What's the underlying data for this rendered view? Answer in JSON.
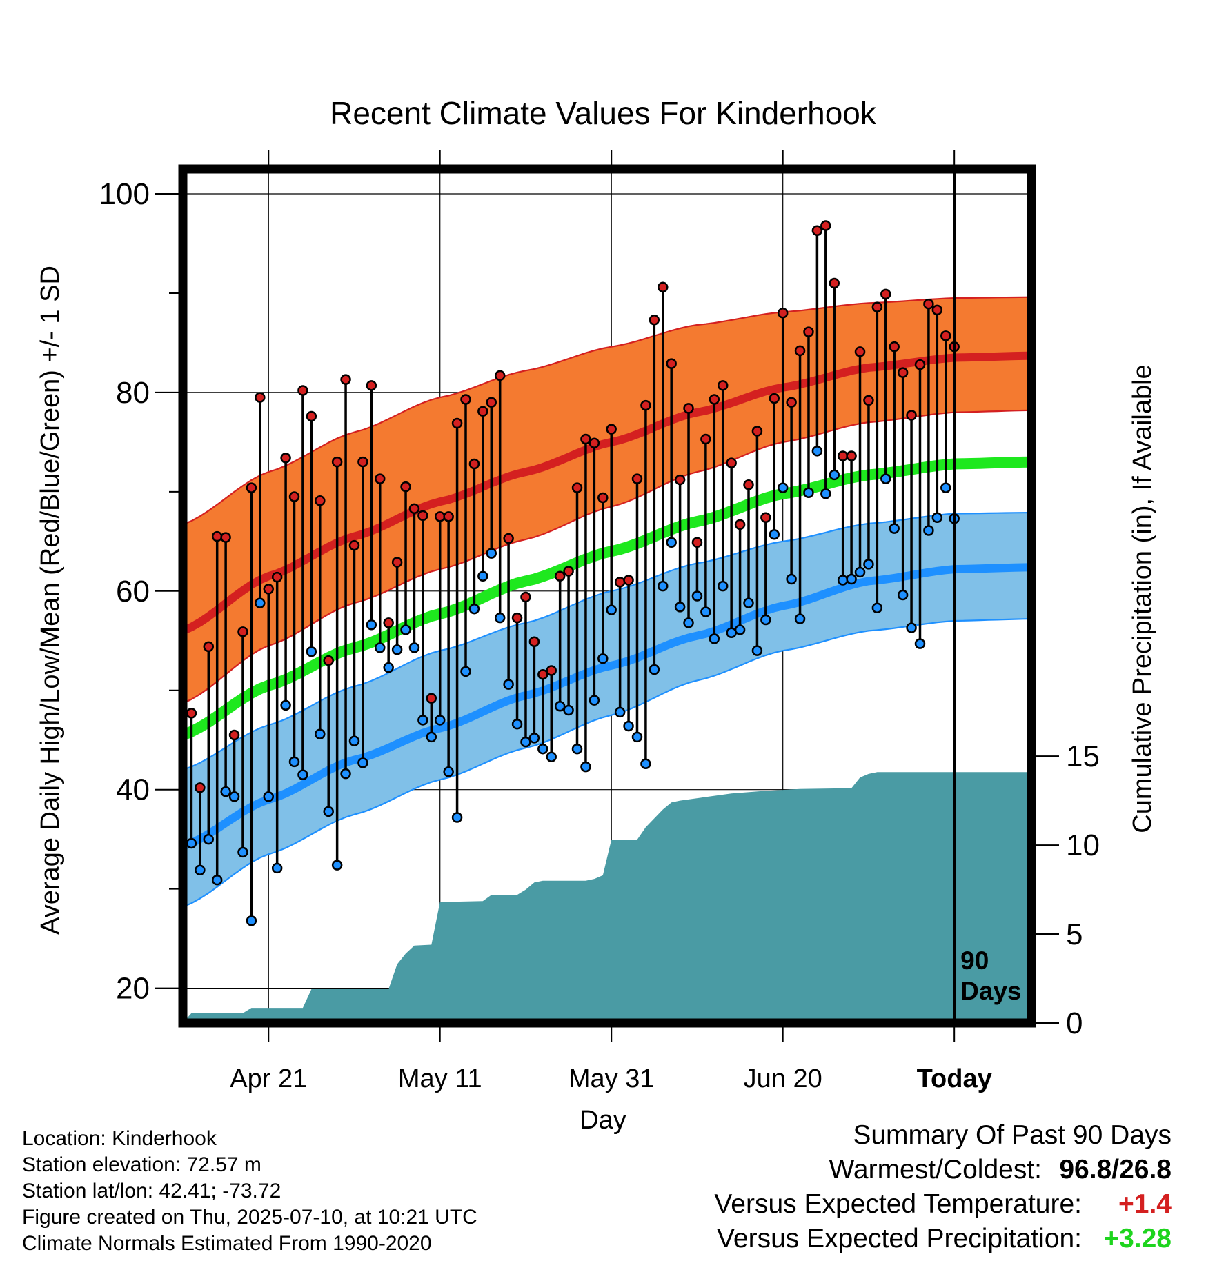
{
  "chart_data": {
    "type": "line",
    "title": "Recent Climate Values For Kinderhook",
    "xlabel": "Day",
    "ylabel": "Average Daily High/Low/Mean (Red/Blue/Green) +/- 1 SD",
    "y2label": "Cumulative Precipitation (in), If Available",
    "x_range": [
      "2025-04-11",
      "2025-07-19"
    ],
    "ylim": [
      16.5,
      102.5
    ],
    "y_ticks": [
      20,
      40,
      60,
      80,
      100
    ],
    "y2lim": [
      0,
      48
    ],
    "y2_ticks": [
      0,
      5,
      10,
      15
    ],
    "x_tick_labels": [
      "Apr 21",
      "May 11",
      "May 31",
      "Jun 20",
      "Today"
    ],
    "x_tick_dates": [
      "2025-04-21",
      "2025-05-11",
      "2025-05-31",
      "2025-06-20",
      "2025-07-10"
    ],
    "grid": true,
    "today_marker": {
      "date": "2025-07-10",
      "label": "90 Days"
    },
    "normals": {
      "dates": [
        "2025-04-11",
        "2025-04-21",
        "2025-05-01",
        "2025-05-11",
        "2025-05-21",
        "2025-05-31",
        "2025-06-10",
        "2025-06-20",
        "2025-06-30",
        "2025-07-10",
        "2025-07-19"
      ],
      "high_mean": [
        56.0,
        61.5,
        65.5,
        69.0,
        72.0,
        75.0,
        78.0,
        80.5,
        82.5,
        83.5,
        83.7
      ],
      "high_upper": [
        66.7,
        72.0,
        76.0,
        79.5,
        82.2,
        84.6,
        86.8,
        88.1,
        89.0,
        89.5,
        89.6
      ],
      "high_lower": [
        48.7,
        54.5,
        58.8,
        62.2,
        65.2,
        68.5,
        72.0,
        75.0,
        77.0,
        78.0,
        78.2
      ],
      "low_mean": [
        34.3,
        39.0,
        43.0,
        46.2,
        49.5,
        52.5,
        55.5,
        58.5,
        61.0,
        62.2,
        62.4
      ],
      "low_upper": [
        42.0,
        46.5,
        50.4,
        54.0,
        56.8,
        60.0,
        62.8,
        65.0,
        66.8,
        67.8,
        67.9
      ],
      "low_lower": [
        28.2,
        33.5,
        37.5,
        41.0,
        44.2,
        47.5,
        51.0,
        54.0,
        56.0,
        57.0,
        57.2
      ],
      "mean": [
        45.5,
        50.5,
        54.3,
        57.7,
        61.0,
        64.0,
        67.0,
        69.8,
        71.7,
        72.8,
        73.0
      ]
    },
    "daily": {
      "start_date": "2025-04-12",
      "highs": [
        47.7,
        40.2,
        54.4,
        65.5,
        65.4,
        45.5,
        55.9,
        70.4,
        79.5,
        60.2,
        61.4,
        73.4,
        69.5,
        80.2,
        77.6,
        69.1,
        53.0,
        73.0,
        81.3,
        64.6,
        73.0,
        80.7,
        71.3,
        56.8,
        62.9,
        70.5,
        68.3,
        67.6,
        49.2,
        67.5,
        67.5,
        76.9,
        79.3,
        72.8,
        78.1,
        79.0,
        81.7,
        65.3,
        57.3,
        59.4,
        54.9,
        51.6,
        52.0,
        61.5,
        62.0,
        70.4,
        75.3,
        74.9,
        69.4,
        76.3,
        60.9,
        61.1,
        71.3,
        78.7,
        87.3,
        90.6,
        82.9,
        71.2,
        78.4,
        64.9,
        75.3,
        79.3,
        80.7,
        72.9,
        66.7,
        70.7,
        76.1,
        67.4,
        79.4,
        88.0,
        79.0,
        84.2,
        86.1,
        96.3,
        96.8,
        91.0,
        73.6,
        73.6,
        84.1,
        79.2,
        88.6,
        89.9,
        84.6,
        82.0,
        77.7,
        82.8,
        88.9,
        88.3,
        85.7,
        84.6
      ],
      "lows": [
        34.6,
        31.9,
        35.0,
        30.9,
        39.8,
        39.3,
        33.7,
        26.8,
        58.8,
        39.3,
        32.1,
        48.5,
        42.8,
        41.5,
        53.9,
        45.6,
        37.8,
        32.4,
        41.6,
        44.9,
        42.7,
        56.6,
        54.3,
        52.3,
        54.1,
        56.1,
        54.3,
        47.0,
        45.3,
        47.0,
        41.8,
        37.2,
        51.9,
        58.2,
        61.5,
        63.8,
        57.3,
        50.6,
        46.6,
        44.8,
        45.2,
        44.1,
        43.3,
        48.4,
        48.0,
        44.1,
        42.3,
        49.0,
        53.2,
        58.1,
        47.8,
        46.4,
        45.3,
        42.6,
        52.1,
        60.5,
        64.9,
        58.4,
        56.8,
        59.5,
        57.9,
        55.2,
        60.5,
        55.8,
        56.1,
        58.8,
        54.0,
        57.1,
        65.7,
        70.4,
        61.2,
        57.2,
        69.9,
        74.1,
        69.8,
        71.7,
        61.1,
        61.2,
        61.9,
        62.7,
        58.3,
        71.3,
        66.3,
        59.6,
        56.3,
        54.7,
        66.1,
        67.4,
        70.4,
        67.3
      ]
    },
    "cumulative_precipitation": {
      "dates": [
        "2025-04-11",
        "2025-04-12",
        "2025-04-18",
        "2025-04-19",
        "2025-04-25",
        "2025-04-26",
        "2025-05-05",
        "2025-05-06",
        "2025-05-07",
        "2025-05-08",
        "2025-05-10",
        "2025-05-11",
        "2025-05-16",
        "2025-05-17",
        "2025-05-20",
        "2025-05-21",
        "2025-05-22",
        "2025-05-23",
        "2025-05-28",
        "2025-05-29",
        "2025-05-30",
        "2025-05-31",
        "2025-06-03",
        "2025-06-04",
        "2025-06-05",
        "2025-06-06",
        "2025-06-07",
        "2025-06-08",
        "2025-06-11",
        "2025-06-14",
        "2025-06-18",
        "2025-06-22",
        "2025-06-28",
        "2025-06-29",
        "2025-06-30",
        "2025-07-01",
        "2025-07-19"
      ],
      "values": [
        0.0,
        0.55,
        0.55,
        0.85,
        0.85,
        1.9,
        1.9,
        3.3,
        3.9,
        4.35,
        4.4,
        6.8,
        6.85,
        7.2,
        7.2,
        7.5,
        7.9,
        8.0,
        8.0,
        8.1,
        8.3,
        10.3,
        10.3,
        11.0,
        11.5,
        12.0,
        12.4,
        12.5,
        12.7,
        12.9,
        13.05,
        13.15,
        13.2,
        13.8,
        14.0,
        14.1,
        14.1
      ]
    }
  },
  "footer": {
    "location": "Location: Kinderhook",
    "elevation": "Station elevation: 72.57 m",
    "latlon": "Station lat/lon: 42.41; -73.72",
    "created": "Figure created on Thu, 2025-07-10, at 10:21 UTC",
    "normals_source": "Climate Normals Estimated From 1990-2020"
  },
  "summary": {
    "heading": "Summary Of Past 90 Days",
    "extremes_label": "Warmest/Coldest:",
    "extremes_value": "96.8/26.8",
    "temp_label": "Versus Expected Temperature:",
    "temp_value": "+1.4",
    "precip_label": "Versus Expected Precipitation:",
    "precip_value": "+3.28"
  },
  "colors": {
    "high_band": "#f47a30",
    "high_line": "#d42020",
    "low_band": "#80c0e8",
    "low_line": "#1e90ff",
    "mean_line": "#1ee81e",
    "precip_fill": "#4a9ba4",
    "temp_delta": "#d42020",
    "precip_delta": "#1ed41e"
  }
}
